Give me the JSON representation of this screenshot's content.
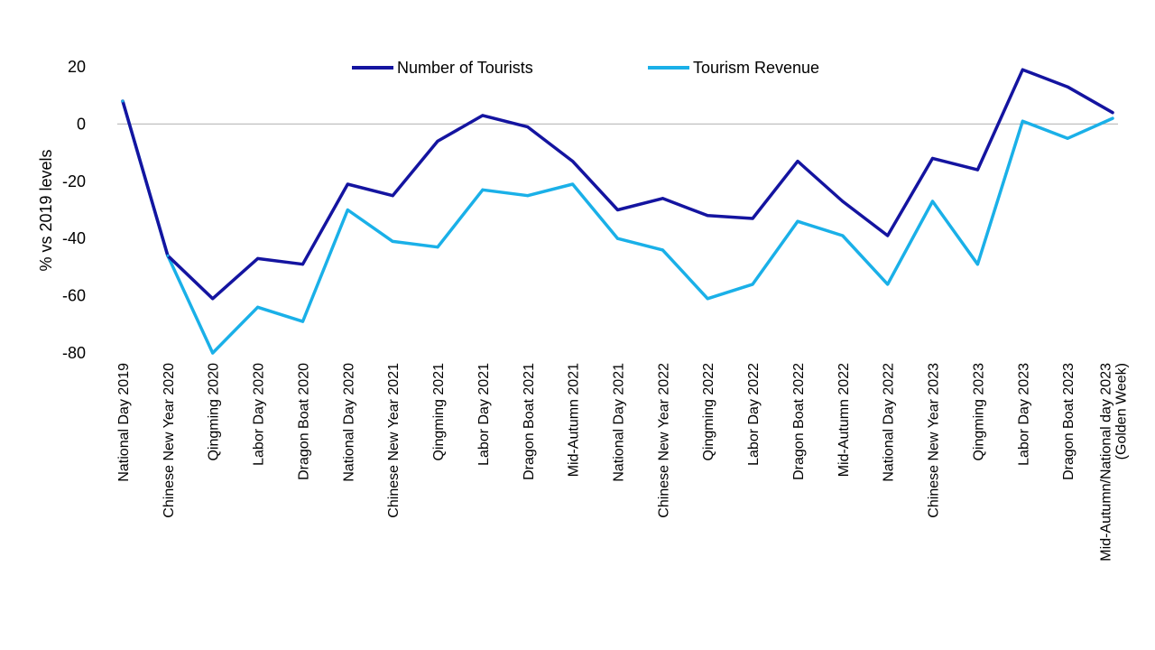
{
  "chart_data": {
    "type": "line",
    "title": "",
    "xlabel": "",
    "ylabel": "% vs 2019 levels",
    "ylim": [
      -80,
      20
    ],
    "yticks": [
      20,
      0,
      -20,
      -40,
      -60,
      -80
    ],
    "grid": false,
    "legend_position": "top-center",
    "categories": [
      [
        "National Day 2019"
      ],
      [
        "Chinese New Year  2020"
      ],
      [
        "Qingming  2020"
      ],
      [
        "Labor Day  2020"
      ],
      [
        "Dragon Boat 2020"
      ],
      [
        "National Day 2020"
      ],
      [
        "Chinese New Year  2021"
      ],
      [
        "Qingming  2021"
      ],
      [
        "Labor Day  2021"
      ],
      [
        "Dragon Boat 2021"
      ],
      [
        "Mid-Autumn 2021"
      ],
      [
        "National Day 2021"
      ],
      [
        "Chinese New Year  2022"
      ],
      [
        "Qingming  2022"
      ],
      [
        "Labor Day  2022"
      ],
      [
        "Dragon Boat 2022"
      ],
      [
        "Mid-Autumn 2022"
      ],
      [
        "National Day 2022"
      ],
      [
        "Chinese New Year  2023"
      ],
      [
        "Qingming  2023"
      ],
      [
        "Labor Day  2023"
      ],
      [
        "Dragon Boat 2023"
      ],
      [
        "Mid-Autumn/National day 2023",
        "(Golden Week)"
      ]
    ],
    "series": [
      {
        "name": "Number of Tourists",
        "color": "#1414a0",
        "values": [
          8,
          -46,
          -61,
          -47,
          -49,
          -21,
          -25,
          -6,
          3,
          -1,
          -13,
          -30,
          -26,
          -32,
          -33,
          -13,
          -27,
          -39,
          -12,
          -16,
          19,
          13,
          4
        ]
      },
      {
        "name": "Tourism Revenue",
        "color": "#1ab0e8",
        "values": [
          8,
          -46,
          -80,
          -64,
          -69,
          -30,
          -41,
          -43,
          -23,
          -25,
          -21,
          -40,
          -44,
          -61,
          -56,
          -34,
          -39,
          -56,
          -27,
          -49,
          1,
          -5,
          2
        ]
      }
    ]
  }
}
